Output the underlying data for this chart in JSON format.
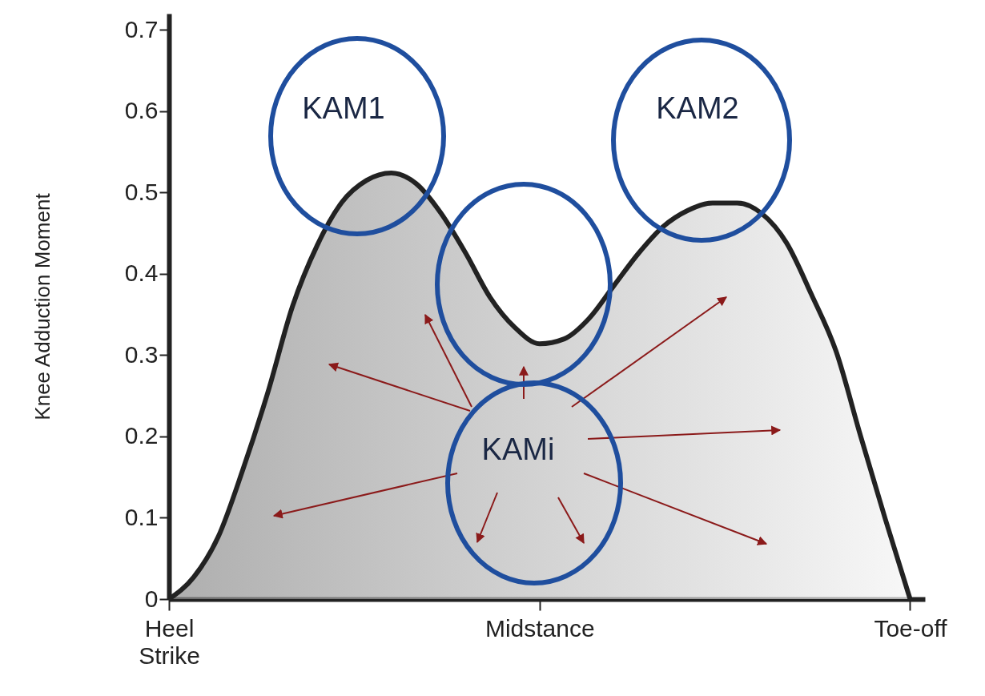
{
  "chart_data": {
    "type": "area",
    "ylabel": "Knee Adduction Moment",
    "categories": [
      "Heel Strike",
      null,
      null,
      null,
      null,
      null,
      null,
      null,
      null,
      null,
      null,
      null,
      null,
      null,
      null,
      "Midstance",
      null,
      null,
      null,
      null,
      null,
      null,
      null,
      null,
      null,
      null,
      null,
      null,
      null,
      null,
      "Toe-off"
    ],
    "series": [
      {
        "color": "#222222",
        "values": [
          0,
          0.027,
          0.077,
          0.16,
          0.254,
          0.36,
          0.435,
          0.488,
          0.515,
          0.524,
          0.511,
          0.475,
          0.426,
          0.371,
          0.334,
          0.314,
          0.32,
          0.345,
          0.385,
          0.425,
          0.458,
          0.478,
          0.487,
          0.487,
          0.474,
          0.438,
          0.375,
          0.305,
          0.2,
          0.098,
          0
        ]
      }
    ],
    "ylim": [
      0,
      0.72
    ],
    "yticks": [
      0,
      0.1,
      0.2,
      0.3,
      0.4,
      0.5,
      0.6,
      0.7
    ],
    "grid": false,
    "annotations": [
      "KAM1",
      "KAM2",
      "KAMi"
    ]
  }
}
